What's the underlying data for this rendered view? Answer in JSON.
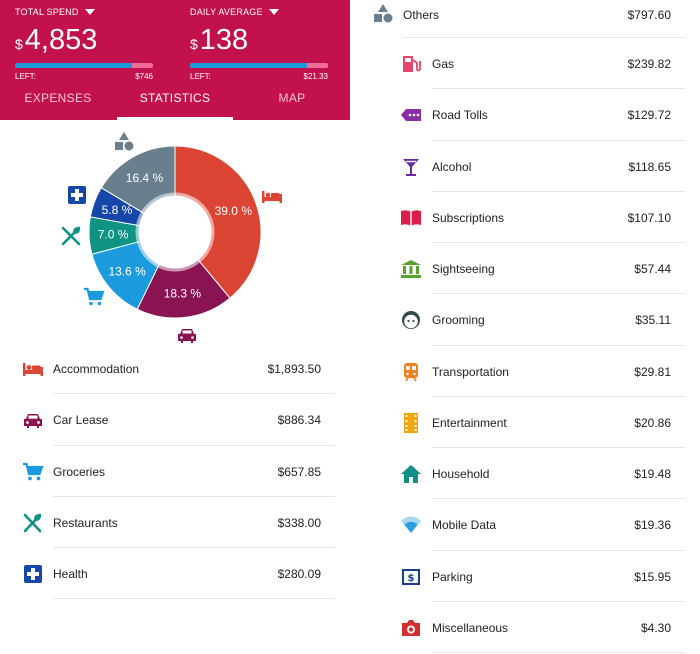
{
  "header": {
    "total_spend": {
      "label": "TOTAL SPEND",
      "currency": "$",
      "amount": "4,853",
      "left_label": "LEFT:",
      "left_value": "$746",
      "progress": 0.85
    },
    "daily_average": {
      "label": "DAILY AVERAGE",
      "currency": "$",
      "amount": "138",
      "left_label": "LEFT:",
      "left_value": "$21.33",
      "progress": 0.85
    }
  },
  "tabs": [
    {
      "label": "EXPENSES",
      "active": false
    },
    {
      "label": "STATISTICS",
      "active": true
    },
    {
      "label": "MAP",
      "active": false
    }
  ],
  "chart_data": {
    "type": "pie",
    "slices": [
      {
        "label": "Accommodation",
        "percent": 39.0,
        "color": "#dc4534",
        "pct_label": "39.0 %"
      },
      {
        "label": "Car Lease",
        "percent": 18.3,
        "color": "#8a1451",
        "pct_label": "18.3 %"
      },
      {
        "label": "Groceries",
        "percent": 13.6,
        "color": "#1b9bde",
        "pct_label": "13.6 %"
      },
      {
        "label": "Restaurants",
        "percent": 7.0,
        "color": "#0f9384",
        "pct_label": "7.0 %"
      },
      {
        "label": "Health",
        "percent": 5.8,
        "color": "#1546a8",
        "pct_label": "5.8 %"
      },
      {
        "label": "Others",
        "percent": 16.4,
        "color": "#6a7f8d",
        "pct_label": "16.4 %"
      }
    ]
  },
  "categories_left": [
    {
      "name": "Accommodation",
      "value": "$1,893.50",
      "icon": "bed-icon",
      "color": "#dc4534"
    },
    {
      "name": "Car Lease",
      "value": "$886.34",
      "icon": "car-icon",
      "color": "#8a1451"
    },
    {
      "name": "Groceries",
      "value": "$657.85",
      "icon": "cart-icon",
      "color": "#1b9bde"
    },
    {
      "name": "Restaurants",
      "value": "$338.00",
      "icon": "utensils-icon",
      "color": "#0f9384"
    },
    {
      "name": "Health",
      "value": "$280.09",
      "icon": "medical-cross-icon",
      "color": "#1546a8"
    }
  ],
  "others": {
    "name": "Others",
    "value": "$797.60",
    "icon": "shapes-icon",
    "color": "#6a7f8d"
  },
  "categories_right": [
    {
      "name": "Gas",
      "value": "$239.82",
      "icon": "gas-pump-icon",
      "color": "#e8436c"
    },
    {
      "name": "Road Tolls",
      "value": "$129.72",
      "icon": "toll-tag-icon",
      "color": "#8a2ea8"
    },
    {
      "name": "Alcohol",
      "value": "$118.65",
      "icon": "cocktail-icon",
      "color": "#6a2ba0"
    },
    {
      "name": "Subscriptions",
      "value": "$107.10",
      "icon": "book-icon",
      "color": "#dc1f4a"
    },
    {
      "name": "Sightseeing",
      "value": "$57.44",
      "icon": "museum-icon",
      "color": "#5aa22e"
    },
    {
      "name": "Grooming",
      "value": "$35.11",
      "icon": "face-icon",
      "color": "#37474f"
    },
    {
      "name": "Transportation",
      "value": "$29.81",
      "icon": "train-icon",
      "color": "#f0821e"
    },
    {
      "name": "Entertainment",
      "value": "$20.86",
      "icon": "film-icon",
      "color": "#f2a60d"
    },
    {
      "name": "Household",
      "value": "$19.48",
      "icon": "house-icon",
      "color": "#11908a"
    },
    {
      "name": "Mobile Data",
      "value": "$19.36",
      "icon": "wifi-icon",
      "color": "#2a9ee0"
    },
    {
      "name": "Parking",
      "value": "$15.95",
      "icon": "parking-icon",
      "color": "#1a3d8f"
    },
    {
      "name": "Miscellaneous",
      "value": "$4.30",
      "icon": "camera-icon",
      "color": "#d32f2f"
    }
  ]
}
